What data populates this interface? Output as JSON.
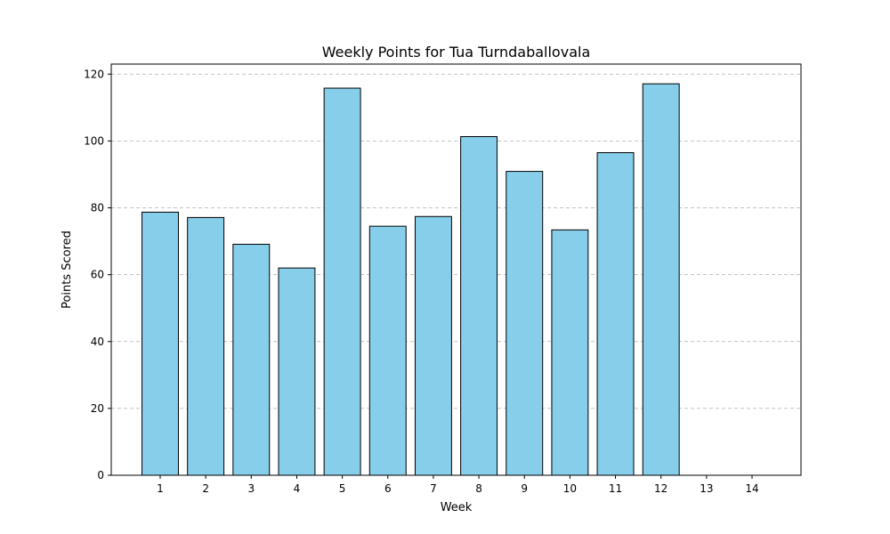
{
  "chart_data": {
    "type": "bar",
    "title": "Weekly Points for Tua Turndaballovala",
    "xlabel": "Week",
    "ylabel": "Points Scored",
    "categories": [
      "1",
      "2",
      "3",
      "4",
      "5",
      "6",
      "7",
      "8",
      "9",
      "10",
      "11",
      "12",
      "13",
      "14"
    ],
    "values": [
      78.7,
      77.1,
      69.1,
      62.0,
      115.8,
      74.5,
      77.4,
      101.3,
      90.9,
      73.4,
      96.5,
      117.1,
      0,
      0
    ],
    "ylim": [
      0,
      123
    ],
    "yticks": [
      0,
      20,
      40,
      60,
      80,
      100,
      120
    ],
    "grid": "y-dashed",
    "bar_color": "#87CEEB",
    "edge_color": "#000000"
  }
}
